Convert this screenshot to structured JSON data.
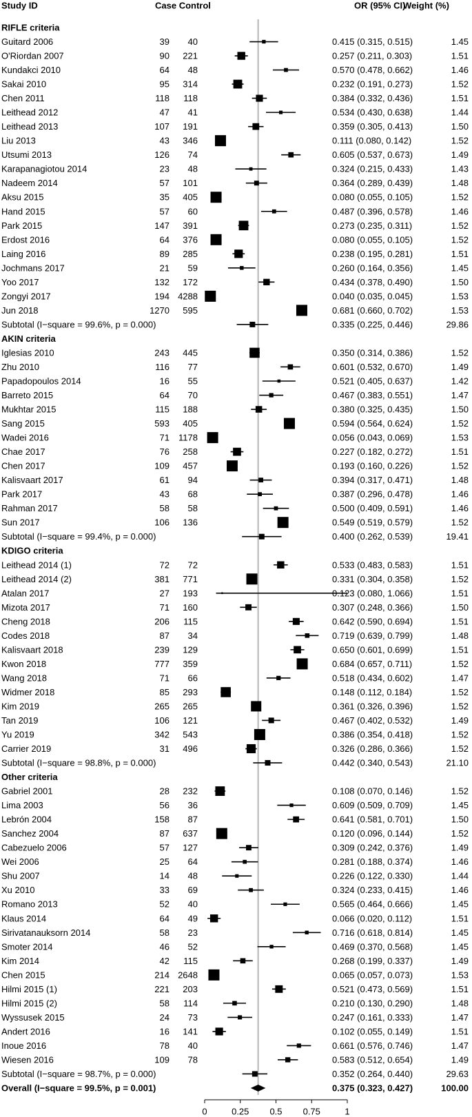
{
  "chart_data": {
    "type": "forest",
    "xlim": [
      0,
      1
    ],
    "ref_line": 0.375,
    "x_ticks": [
      "0",
      "0.25",
      "0.5",
      "0.75",
      "1"
    ],
    "x_tick_values": [
      0,
      0.25,
      0.5,
      0.75,
      1
    ],
    "headers": {
      "study": "Study ID",
      "counts": "Case Control",
      "or": "OR (95% CI)",
      "weight": "Weight (%)"
    },
    "groups": [
      {
        "title": "RIFLE criteria",
        "studies": [
          {
            "name": "Guitard 2006",
            "case": "39",
            "control": "40",
            "or": 0.415,
            "lo": 0.315,
            "hi": 0.515,
            "or_text": "0.415 (0.315, 0.515)",
            "weight": "1.45"
          },
          {
            "name": "O'Riordan 2007",
            "case": "90",
            "control": "221",
            "or": 0.257,
            "lo": 0.211,
            "hi": 0.303,
            "or_text": "0.257 (0.211, 0.303)",
            "weight": "1.51"
          },
          {
            "name": "Kundakci 2010",
            "case": "64",
            "control": "48",
            "or": 0.57,
            "lo": 0.478,
            "hi": 0.662,
            "or_text": "0.570 (0.478, 0.662)",
            "weight": "1.46"
          },
          {
            "name": "Sakai 2010",
            "case": "95",
            "control": "314",
            "or": 0.232,
            "lo": 0.191,
            "hi": 0.273,
            "or_text": "0.232 (0.191, 0.273)",
            "weight": "1.52"
          },
          {
            "name": "Chen 2011",
            "case": "118",
            "control": "118",
            "or": 0.384,
            "lo": 0.332,
            "hi": 0.436,
            "or_text": "0.384 (0.332, 0.436)",
            "weight": "1.51"
          },
          {
            "name": "Leithead 2012",
            "case": "47",
            "control": "41",
            "or": 0.534,
            "lo": 0.43,
            "hi": 0.638,
            "or_text": "0.534 (0.430, 0.638)",
            "weight": "1.44"
          },
          {
            "name": "Leithead 2013",
            "case": "107",
            "control": "191",
            "or": 0.359,
            "lo": 0.305,
            "hi": 0.413,
            "or_text": "0.359 (0.305, 0.413)",
            "weight": "1.50"
          },
          {
            "name": "Liu 2013",
            "case": "43",
            "control": "346",
            "or": 0.111,
            "lo": 0.08,
            "hi": 0.142,
            "or_text": "0.111 (0.080, 0.142)",
            "weight": "1.52"
          },
          {
            "name": "Utsumi 2013",
            "case": "126",
            "control": "74",
            "or": 0.605,
            "lo": 0.537,
            "hi": 0.673,
            "or_text": "0.605 (0.537, 0.673)",
            "weight": "1.49"
          },
          {
            "name": "Karapanagiotou 2014",
            "case": "23",
            "control": "48",
            "or": 0.324,
            "lo": 0.215,
            "hi": 0.433,
            "or_text": "0.324 (0.215, 0.433)",
            "weight": "1.43"
          },
          {
            "name": "Nadeem 2014",
            "case": "57",
            "control": "101",
            "or": 0.364,
            "lo": 0.289,
            "hi": 0.439,
            "or_text": "0.364 (0.289, 0.439)",
            "weight": "1.48"
          },
          {
            "name": "Aksu 2015",
            "case": "35",
            "control": "405",
            "or": 0.08,
            "lo": 0.055,
            "hi": 0.105,
            "or_text": "0.080 (0.055, 0.105)",
            "weight": "1.52"
          },
          {
            "name": "Hand 2015",
            "case": "57",
            "control": "60",
            "or": 0.487,
            "lo": 0.396,
            "hi": 0.578,
            "or_text": "0.487 (0.396, 0.578)",
            "weight": "1.46"
          },
          {
            "name": "Park 2015",
            "case": "147",
            "control": "391",
            "or": 0.273,
            "lo": 0.235,
            "hi": 0.311,
            "or_text": "0.273 (0.235, 0.311)",
            "weight": "1.52"
          },
          {
            "name": "Erdost 2016",
            "case": "64",
            "control": "376",
            "or": 0.08,
            "lo": 0.055,
            "hi": 0.105,
            "or_text": "0.080 (0.055, 0.105)",
            "weight": "1.52"
          },
          {
            "name": "Laing 2016",
            "case": "89",
            "control": "285",
            "or": 0.238,
            "lo": 0.195,
            "hi": 0.281,
            "or_text": "0.238 (0.195, 0.281)",
            "weight": "1.51"
          },
          {
            "name": "Jochmans 2017",
            "case": "21",
            "control": "59",
            "or": 0.26,
            "lo": 0.164,
            "hi": 0.356,
            "or_text": "0.260 (0.164, 0.356)",
            "weight": "1.45"
          },
          {
            "name": "Yoo 2017",
            "case": "132",
            "control": "172",
            "or": 0.434,
            "lo": 0.378,
            "hi": 0.49,
            "or_text": "0.434 (0.378, 0.490)",
            "weight": "1.50"
          },
          {
            "name": "Zongyi 2017",
            "case": "194",
            "control": "4288",
            "or": 0.04,
            "lo": 0.035,
            "hi": 0.045,
            "or_text": "0.040 (0.035, 0.045)",
            "weight": "1.53"
          },
          {
            "name": "Jun 2018",
            "case": "1270",
            "control": "595",
            "or": 0.681,
            "lo": 0.66,
            "hi": 0.702,
            "or_text": "0.681 (0.660, 0.702)",
            "weight": "1.53"
          }
        ],
        "subtotal": {
          "label": "Subtotal (I−square = 99.6%, p = 0.000)",
          "or": 0.335,
          "lo": 0.225,
          "hi": 0.446,
          "or_text": "0.335 (0.225, 0.446)",
          "weight": "29.86"
        }
      },
      {
        "title": "AKIN criteria",
        "studies": [
          {
            "name": "Iglesias 2010",
            "case": "243",
            "control": "445",
            "or": 0.35,
            "lo": 0.314,
            "hi": 0.386,
            "or_text": "0.350 (0.314, 0.386)",
            "weight": "1.52"
          },
          {
            "name": "Zhu 2010",
            "case": "116",
            "control": "77",
            "or": 0.601,
            "lo": 0.532,
            "hi": 0.67,
            "or_text": "0.601 (0.532, 0.670)",
            "weight": "1.49"
          },
          {
            "name": "Papadopoulos 2014",
            "case": "16",
            "control": "55",
            "or": 0.521,
            "lo": 0.405,
            "hi": 0.637,
            "or_text": "0.521 (0.405, 0.637)",
            "weight": "1.42"
          },
          {
            "name": "Barreto 2015",
            "case": "64",
            "control": "70",
            "or": 0.467,
            "lo": 0.383,
            "hi": 0.551,
            "or_text": "0.467 (0.383, 0.551)",
            "weight": "1.47"
          },
          {
            "name": "Mukhtar 2015",
            "case": "115",
            "control": "188",
            "or": 0.38,
            "lo": 0.325,
            "hi": 0.435,
            "or_text": "0.380 (0.325, 0.435)",
            "weight": "1.50"
          },
          {
            "name": "Sang 2015",
            "case": "593",
            "control": "405",
            "or": 0.594,
            "lo": 0.564,
            "hi": 0.624,
            "or_text": "0.594 (0.564, 0.624)",
            "weight": "1.52"
          },
          {
            "name": "Wadei 2016",
            "case": "71",
            "control": "1178",
            "or": 0.056,
            "lo": 0.043,
            "hi": 0.069,
            "or_text": "0.056 (0.043, 0.069)",
            "weight": "1.53"
          },
          {
            "name": "Chae 2017",
            "case": "76",
            "control": "258",
            "or": 0.227,
            "lo": 0.182,
            "hi": 0.272,
            "or_text": "0.227 (0.182, 0.272)",
            "weight": "1.51"
          },
          {
            "name": "Chen 2017",
            "case": "109",
            "control": "457",
            "or": 0.193,
            "lo": 0.16,
            "hi": 0.226,
            "or_text": "0.193 (0.160, 0.226)",
            "weight": "1.52"
          },
          {
            "name": "Kalisvaart 2017",
            "case": "61",
            "control": "94",
            "or": 0.394,
            "lo": 0.317,
            "hi": 0.471,
            "or_text": "0.394 (0.317, 0.471)",
            "weight": "1.48"
          },
          {
            "name": "Park 2017",
            "case": "43",
            "control": "68",
            "or": 0.387,
            "lo": 0.296,
            "hi": 0.478,
            "or_text": "0.387 (0.296, 0.478)",
            "weight": "1.46"
          },
          {
            "name": "Rahman 2017",
            "case": "58",
            "control": "58",
            "or": 0.5,
            "lo": 0.409,
            "hi": 0.591,
            "or_text": "0.500 (0.409, 0.591)",
            "weight": "1.46"
          },
          {
            "name": "Sun 2017",
            "case": "106",
            "control": "136",
            "or": 0.549,
            "lo": 0.519,
            "hi": 0.579,
            "or_text": "0.549 (0.519, 0.579)",
            "weight": "1.52"
          }
        ],
        "subtotal": {
          "label": "Subtotal (I−square = 99.4%, p = 0.000)",
          "or": 0.4,
          "lo": 0.262,
          "hi": 0.539,
          "or_text": "0.400 (0.262, 0.539)",
          "weight": "19.41"
        }
      },
      {
        "title": "KDIGO criteria",
        "studies": [
          {
            "name": "Leithead 2014 (1)",
            "case": "72",
            "control": "72",
            "or": 0.533,
            "lo": 0.483,
            "hi": 0.583,
            "or_text": "0.533 (0.483, 0.583)",
            "weight": "1.51"
          },
          {
            "name": "Leithead 2014 (2)",
            "case": "381",
            "control": "771",
            "or": 0.331,
            "lo": 0.304,
            "hi": 0.358,
            "or_text": "0.331 (0.304, 0.358)",
            "weight": "1.52"
          },
          {
            "name": "Atalan 2017",
            "case": "27",
            "control": "193",
            "or": 0.123,
            "lo": 0.08,
            "hi": 1.066,
            "or_text": "0.123 (0.080, 1.066)",
            "weight": "1.51"
          },
          {
            "name": "Mizota 2017",
            "case": "71",
            "control": "160",
            "or": 0.307,
            "lo": 0.248,
            "hi": 0.366,
            "or_text": "0.307 (0.248, 0.366)",
            "weight": "1.50"
          },
          {
            "name": "Cheng 2018",
            "case": "206",
            "control": "115",
            "or": 0.642,
            "lo": 0.59,
            "hi": 0.694,
            "or_text": "0.642 (0.590, 0.694)",
            "weight": "1.51"
          },
          {
            "name": "Codes 2018",
            "case": "87",
            "control": "34",
            "or": 0.719,
            "lo": 0.639,
            "hi": 0.799,
            "or_text": "0.719 (0.639, 0.799)",
            "weight": "1.48"
          },
          {
            "name": "Kalisvaart 2018",
            "case": "239",
            "control": "129",
            "or": 0.65,
            "lo": 0.601,
            "hi": 0.699,
            "or_text": "0.650 (0.601, 0.699)",
            "weight": "1.51"
          },
          {
            "name": "Kwon 2018",
            "case": "777",
            "control": "359",
            "or": 0.684,
            "lo": 0.657,
            "hi": 0.711,
            "or_text": "0.684 (0.657, 0.711)",
            "weight": "1.52"
          },
          {
            "name": "Wang 2018",
            "case": "71",
            "control": "66",
            "or": 0.518,
            "lo": 0.434,
            "hi": 0.602,
            "or_text": "0.518 (0.434, 0.602)",
            "weight": "1.47"
          },
          {
            "name": "Widmer 2018",
            "case": "85",
            "control": "293",
            "or": 0.148,
            "lo": 0.112,
            "hi": 0.184,
            "or_text": "0.148 (0.112, 0.184)",
            "weight": "1.52"
          },
          {
            "name": "Kim 2019",
            "case": "265",
            "control": "265",
            "or": 0.361,
            "lo": 0.326,
            "hi": 0.396,
            "or_text": "0.361 (0.326, 0.396)",
            "weight": "1.52"
          },
          {
            "name": "Tan 2019",
            "case": "106",
            "control": "121",
            "or": 0.467,
            "lo": 0.402,
            "hi": 0.532,
            "or_text": "0.467 (0.402, 0.532)",
            "weight": "1.49"
          },
          {
            "name": "Yu 2019",
            "case": "342",
            "control": "543",
            "or": 0.386,
            "lo": 0.354,
            "hi": 0.418,
            "or_text": "0.386 (0.354, 0.418)",
            "weight": "1.52"
          },
          {
            "name": "Carrier 2019",
            "case": "31",
            "control": "496",
            "or": 0.326,
            "lo": 0.286,
            "hi": 0.366,
            "or_text": "0.326 (0.286, 0.366)",
            "weight": "1.52"
          }
        ],
        "subtotal": {
          "label": "Subtotal (I−square = 98.8%, p = 0.000)",
          "or": 0.442,
          "lo": 0.34,
          "hi": 0.543,
          "or_text": "0.442 (0.340, 0.543)",
          "weight": "21.10"
        }
      },
      {
        "title": "Other criteria",
        "studies": [
          {
            "name": "Gabriel 2001",
            "case": "28",
            "control": "232",
            "or": 0.108,
            "lo": 0.07,
            "hi": 0.146,
            "or_text": "0.108 (0.070, 0.146)",
            "weight": "1.52"
          },
          {
            "name": "Lima 2003",
            "case": "56",
            "control": "36",
            "or": 0.609,
            "lo": 0.509,
            "hi": 0.709,
            "or_text": "0.609 (0.509, 0.709)",
            "weight": "1.45"
          },
          {
            "name": "Lebrón 2004",
            "case": "158",
            "control": "87",
            "or": 0.641,
            "lo": 0.581,
            "hi": 0.701,
            "or_text": "0.641 (0.581, 0.701)",
            "weight": "1.50"
          },
          {
            "name": "Sanchez 2004",
            "case": "87",
            "control": "637",
            "or": 0.12,
            "lo": 0.096,
            "hi": 0.144,
            "or_text": "0.120 (0.096, 0.144)",
            "weight": "1.52"
          },
          {
            "name": "Cabezuelo 2006",
            "case": "57",
            "control": "127",
            "or": 0.309,
            "lo": 0.242,
            "hi": 0.376,
            "or_text": "0.309 (0.242, 0.376)",
            "weight": "1.49"
          },
          {
            "name": "Wei 2006",
            "case": "25",
            "control": "64",
            "or": 0.281,
            "lo": 0.188,
            "hi": 0.374,
            "or_text": "0.281 (0.188, 0.374)",
            "weight": "1.46"
          },
          {
            "name": "Shu 2007",
            "case": "14",
            "control": "48",
            "or": 0.226,
            "lo": 0.122,
            "hi": 0.33,
            "or_text": "0.226 (0.122, 0.330)",
            "weight": "1.44"
          },
          {
            "name": "Xu 2010",
            "case": "33",
            "control": "69",
            "or": 0.324,
            "lo": 0.233,
            "hi": 0.415,
            "or_text": "0.324 (0.233, 0.415)",
            "weight": "1.46"
          },
          {
            "name": "Romano 2013",
            "case": "52",
            "control": "40",
            "or": 0.565,
            "lo": 0.464,
            "hi": 0.666,
            "or_text": "0.565 (0.464, 0.666)",
            "weight": "1.45"
          },
          {
            "name": "Klaus 2014",
            "case": "64",
            "control": "49",
            "or": 0.066,
            "lo": 0.02,
            "hi": 0.112,
            "or_text": "0.066 (0.020, 0.112)",
            "weight": "1.51"
          },
          {
            "name": "Sirivatanauksorn 2014",
            "case": "58",
            "control": "23",
            "or": 0.716,
            "lo": 0.618,
            "hi": 0.814,
            "or_text": "0.716 (0.618, 0.814)",
            "weight": "1.45"
          },
          {
            "name": "Smoter 2014",
            "case": "46",
            "control": "52",
            "or": 0.469,
            "lo": 0.37,
            "hi": 0.568,
            "or_text": "0.469 (0.370, 0.568)",
            "weight": "1.45"
          },
          {
            "name": "Kim 2014",
            "case": "42",
            "control": "115",
            "or": 0.268,
            "lo": 0.199,
            "hi": 0.337,
            "or_text": "0.268 (0.199, 0.337)",
            "weight": "1.49"
          },
          {
            "name": "Chen 2015",
            "case": "214",
            "control": "2648",
            "or": 0.065,
            "lo": 0.057,
            "hi": 0.073,
            "or_text": "0.065 (0.057, 0.073)",
            "weight": "1.53"
          },
          {
            "name": "Hilmi 2015 (1)",
            "case": "221",
            "control": "203",
            "or": 0.521,
            "lo": 0.473,
            "hi": 0.569,
            "or_text": "0.521 (0.473, 0.569)",
            "weight": "1.51"
          },
          {
            "name": "Hilmi 2015 (2)",
            "case": "58",
            "control": "114",
            "or": 0.21,
            "lo": 0.13,
            "hi": 0.29,
            "or_text": "0.210 (0.130, 0.290)",
            "weight": "1.48"
          },
          {
            "name": "Wyssusek 2015",
            "case": "24",
            "control": "73",
            "or": 0.247,
            "lo": 0.161,
            "hi": 0.333,
            "or_text": "0.247 (0.161, 0.333)",
            "weight": "1.47"
          },
          {
            "name": "Andert 2016",
            "case": "16",
            "control": "141",
            "or": 0.102,
            "lo": 0.055,
            "hi": 0.149,
            "or_text": "0.102 (0.055, 0.149)",
            "weight": "1.51"
          },
          {
            "name": "Inoue 2016",
            "case": "78",
            "control": "40",
            "or": 0.661,
            "lo": 0.576,
            "hi": 0.746,
            "or_text": "0.661 (0.576, 0.746)",
            "weight": "1.47"
          },
          {
            "name": "Wiesen 2016",
            "case": "109",
            "control": "78",
            "or": 0.583,
            "lo": 0.512,
            "hi": 0.654,
            "or_text": "0.583 (0.512, 0.654)",
            "weight": "1.49"
          }
        ],
        "subtotal": {
          "label": "Subtotal (I−square = 98.7%, p = 0.000)",
          "or": 0.352,
          "lo": 0.264,
          "hi": 0.44,
          "or_text": "0.352 (0.264, 0.440)",
          "weight": "29.63"
        }
      }
    ],
    "overall": {
      "label": "Overall (I−square = 99.5%, p = 0.001)",
      "or": 0.375,
      "lo": 0.323,
      "hi": 0.427,
      "or_text": "0.375 (0.323, 0.427)",
      "weight": "100.00"
    }
  }
}
